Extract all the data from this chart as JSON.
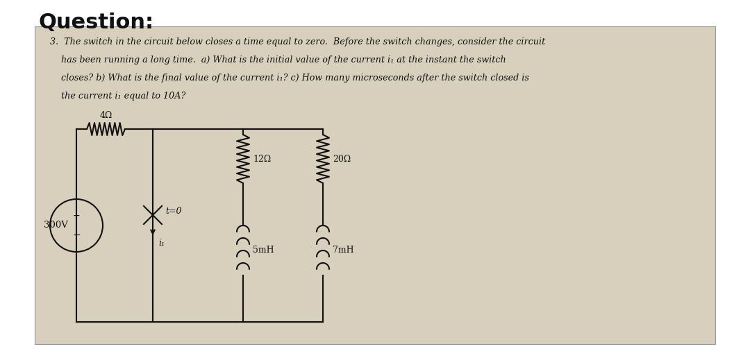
{
  "title": "Question:",
  "title_fontsize": 22,
  "title_fontweight": "bold",
  "bg_color": "#d8d0bc",
  "outer_bg": "#ffffff",
  "resistor_4ohm": "4Ω",
  "resistor_12ohm": "12Ω",
  "resistor_20ohm": "20Ω",
  "inductor_5mH": "5mH",
  "inductor_7mH": "7mH",
  "voltage_source": "300V",
  "switch_label": "t=0",
  "current_label": "i₁",
  "text_color": "#111111",
  "circuit_color": "#111111",
  "line_width": 1.5,
  "q_line1": "3.  The switch in the circuit below closes a time equal to zero.  Before the switch changes, consider the circuit",
  "q_line2": "    has been running a long time.  a) What is the initial value of the current i₁ at the instant the switch",
  "q_line3": "    closes? b) What is the final value of the current i₁? c) How many microseconds after the switch closed is",
  "q_line4": "    the current i₁ equal to 10A?"
}
